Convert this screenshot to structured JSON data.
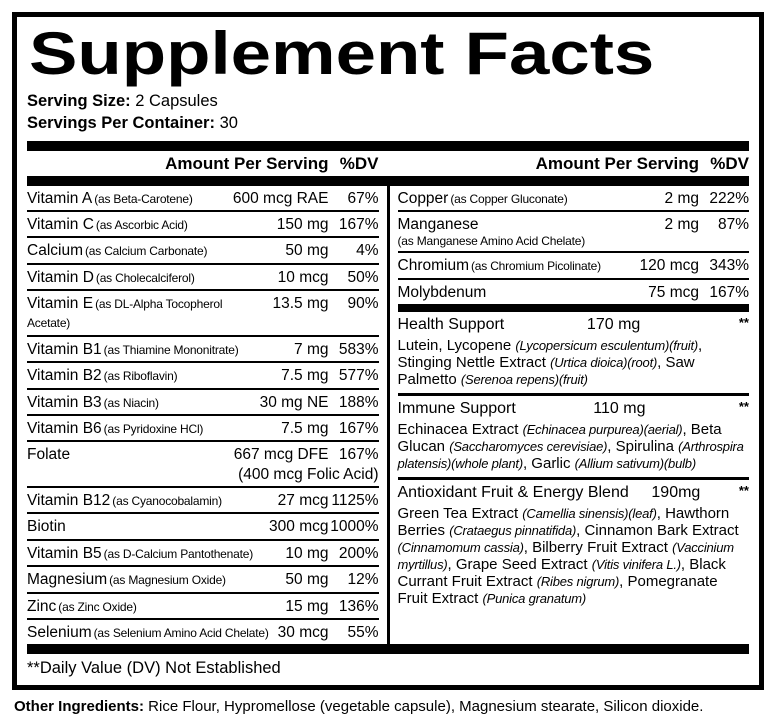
{
  "title": "Supplement Facts",
  "serving": {
    "size_label": "Serving Size:",
    "size_value": "2 Capsules",
    "container_label": "Servings Per Container:",
    "container_value": "30"
  },
  "columns": {
    "amount_header": "Amount Per Serving",
    "dv_header": "%DV"
  },
  "left_rows": [
    {
      "name": "Vitamin A",
      "form": "(as Beta-Carotene)",
      "amount": "600 mcg RAE",
      "dv": "67%"
    },
    {
      "name": "Vitamin C",
      "form": "(as Ascorbic Acid)",
      "amount": "150 mg",
      "dv": "167%"
    },
    {
      "name": "Calcium",
      "form": "(as Calcium Carbonate)",
      "amount": "50 mg",
      "dv": "4%"
    },
    {
      "name": "Vitamin D",
      "form": "(as Cholecalciferol)",
      "amount": "10 mcg",
      "dv": "50%"
    },
    {
      "name": "Vitamin E",
      "form": "(as DL-Alpha Tocopherol Acetate)",
      "amount": "13.5 mg",
      "dv": "90%"
    },
    {
      "name": "Vitamin B1",
      "form": "(as Thiamine Mononitrate)",
      "amount": "7 mg",
      "dv": "583%"
    },
    {
      "name": "Vitamin B2",
      "form": "(as Riboflavin)",
      "amount": "7.5 mg",
      "dv": "577%"
    },
    {
      "name": "Vitamin B3",
      "form": "(as Niacin)",
      "amount": "30 mg NE",
      "dv": "188%"
    },
    {
      "name": "Vitamin B6",
      "form": "(as Pyridoxine HCl)",
      "amount": "7.5 mg",
      "dv": "167%"
    },
    {
      "name": "Folate",
      "form": "",
      "amount": "667 mcg DFE",
      "amount2": "(400 mcg Folic Acid)",
      "dv": "167%"
    },
    {
      "name": "Vitamin B12",
      "form": "(as Cyanocobalamin)",
      "amount": "27 mcg",
      "dv": "1125%"
    },
    {
      "name": "Biotin",
      "form": "",
      "amount": "300 mcg",
      "dv": "1000%"
    },
    {
      "name": "Vitamin B5",
      "form": "(as D-Calcium Pantothenate)",
      "amount": "10 mg",
      "dv": "200%"
    },
    {
      "name": "Magnesium",
      "form": "(as Magnesium Oxide)",
      "amount": "50 mg",
      "dv": "12%"
    },
    {
      "name": "Zinc",
      "form": "(as Zinc Oxide)",
      "amount": "15 mg",
      "dv": "136%"
    },
    {
      "name": "Selenium",
      "form": "(as Selenium Amino Acid Chelate)",
      "amount": "30 mcg",
      "dv": "55%"
    }
  ],
  "right_rows": [
    {
      "name": "Copper",
      "form": "(as Copper Gluconate)",
      "amount": "2 mg",
      "dv": "222%"
    },
    {
      "name": "Manganese",
      "form": "",
      "form2": "(as Manganese Amino Acid Chelate)",
      "amount": "2 mg",
      "dv": "87%"
    },
    {
      "name": "Chromium",
      "form": "(as Chromium Picolinate)",
      "amount": "120 mcg",
      "dv": "343%"
    },
    {
      "name": "Molybdenum",
      "form": "",
      "amount": "75 mcg",
      "dv": "167%"
    }
  ],
  "blends": [
    {
      "name": "Health Support",
      "amount": "170 mg",
      "dv": "**",
      "desc": [
        {
          "t": "Lutein, Lycopene ",
          "i": false
        },
        {
          "t": "(Lycopersicum esculentum)(fruit)",
          "i": true
        },
        {
          "t": ", Stinging Nettle Extract ",
          "i": false
        },
        {
          "t": "(Urtica dioica)(root)",
          "i": true
        },
        {
          "t": ", Saw Palmetto ",
          "i": false
        },
        {
          "t": "(Serenoa repens)(fruit)",
          "i": true
        }
      ]
    },
    {
      "name": "Immune Support",
      "amount": "110 mg",
      "dv": "**",
      "desc": [
        {
          "t": "Echinacea Extract ",
          "i": false
        },
        {
          "t": "(Echinacea purpurea)(aerial)",
          "i": true
        },
        {
          "t": ", Beta Glucan ",
          "i": false
        },
        {
          "t": "(Saccharomyces cerevisiae)",
          "i": true
        },
        {
          "t": ", Spirulina ",
          "i": false
        },
        {
          "t": "(Arthrospira platensis)(whole plant)",
          "i": true
        },
        {
          "t": ", Garlic ",
          "i": false
        },
        {
          "t": "(Allium sativum)(bulb)",
          "i": true
        }
      ]
    },
    {
      "name": "Antioxidant Fruit & Energy Blend",
      "amount": "190mg",
      "dv": "**",
      "desc": [
        {
          "t": "Green Tea Extract ",
          "i": false
        },
        {
          "t": "(Camellia sinensis)(leaf)",
          "i": true
        },
        {
          "t": ", Hawthorn Berries ",
          "i": false
        },
        {
          "t": "(Crataegus pinnatifida)",
          "i": true
        },
        {
          "t": ", Cinnamon Bark Extract ",
          "i": false
        },
        {
          "t": "(Cinnamomum cassia)",
          "i": true
        },
        {
          "t": ", Bilberry Fruit Extract ",
          "i": false
        },
        {
          "t": "(Vaccinium myrtillus)",
          "i": true
        },
        {
          "t": ", Grape Seed Extract ",
          "i": false
        },
        {
          "t": "(Vitis vinifera L.)",
          "i": true
        },
        {
          "t": ", Black Currant Fruit Extract ",
          "i": false
        },
        {
          "t": "(Ribes nigrum)",
          "i": true
        },
        {
          "t": ", Pomegranate Fruit Extract ",
          "i": false
        },
        {
          "t": "(Punica granatum)",
          "i": true
        }
      ]
    }
  ],
  "footnote": "**Daily Value (DV) Not Established",
  "other_ingredients": {
    "label": "Other Ingredients:",
    "value": " Rice Flour, Hypromellose (vegetable capsule), Magnesium stearate, Silicon dioxide."
  }
}
